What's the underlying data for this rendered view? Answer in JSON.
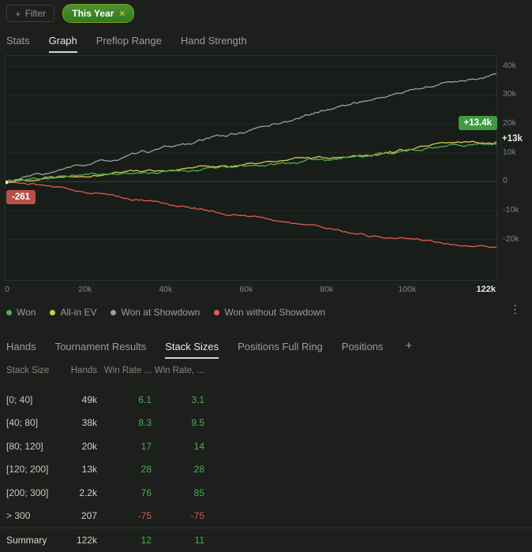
{
  "colors": {
    "page_bg": "#1c1f1c",
    "chart_bg": "#191d19",
    "grid": "#252a25",
    "zero_line": "#3a3f3a",
    "positive": "#4caf50",
    "negative": "#df5550"
  },
  "filter_bar": {
    "add_filter_label": "Filter",
    "add_filter_plus": "+",
    "active_filter_label": "This Year",
    "remove_filter_glyph": "×"
  },
  "top_tabs": [
    {
      "label": "Stats",
      "active": false
    },
    {
      "label": "Graph",
      "active": true
    },
    {
      "label": "Preflop Range",
      "active": false
    },
    {
      "label": "Hand Strength",
      "active": false
    }
  ],
  "chart_data": {
    "type": "line",
    "x_max": 122000,
    "y_domain": [
      -34000,
      43500
    ],
    "x_ticks": [
      {
        "label": "0",
        "value": 0
      },
      {
        "label": "20k",
        "value": 20000
      },
      {
        "label": "40k",
        "value": 40000
      },
      {
        "label": "60k",
        "value": 60000
      },
      {
        "label": "80k",
        "value": 80000
      },
      {
        "label": "100k",
        "value": 100000
      },
      {
        "label": "122k",
        "value": 122000,
        "emph": true
      }
    ],
    "y_ticks": [
      {
        "label": "40k",
        "value": 40000
      },
      {
        "label": "30k",
        "value": 30000
      },
      {
        "label": "20k",
        "value": 20000
      },
      {
        "label": "10k",
        "value": 10000
      },
      {
        "label": "0",
        "value": 0
      },
      {
        "label": "-10k",
        "value": -10000
      },
      {
        "label": "-20k",
        "value": -20000
      }
    ],
    "annotations": {
      "end_badge": "+13.4k",
      "end_axis_label": "+13k",
      "start_badge": "-261"
    },
    "series": [
      {
        "name": "Won",
        "color": "#4caf50",
        "z": 4,
        "noise": 700,
        "seed": 11,
        "points": [
          [
            0,
            -261
          ],
          [
            10000,
            1300
          ],
          [
            20000,
            2400
          ],
          [
            30000,
            2900
          ],
          [
            40000,
            3400
          ],
          [
            50000,
            4300
          ],
          [
            60000,
            5000
          ],
          [
            70000,
            6100
          ],
          [
            80000,
            7600
          ],
          [
            90000,
            9200
          ],
          [
            100000,
            10600
          ],
          [
            110000,
            11600
          ],
          [
            122000,
            13400
          ]
        ]
      },
      {
        "name": "All-in EV",
        "color": "#d5c94f",
        "z": 3,
        "noise": 700,
        "seed": 22,
        "points": [
          [
            0,
            0
          ],
          [
            10000,
            1800
          ],
          [
            20000,
            3300
          ],
          [
            30000,
            4100
          ],
          [
            40000,
            4300
          ],
          [
            50000,
            5100
          ],
          [
            60000,
            5600
          ],
          [
            70000,
            6700
          ],
          [
            80000,
            8100
          ],
          [
            90000,
            9600
          ],
          [
            100000,
            10900
          ],
          [
            110000,
            12100
          ],
          [
            122000,
            13100
          ]
        ]
      },
      {
        "name": "Won at Showdown",
        "color": "#9e9e9e",
        "z": 2,
        "noise": 800,
        "seed": 33,
        "points": [
          [
            0,
            0
          ],
          [
            10000,
            2600
          ],
          [
            20000,
            5200
          ],
          [
            30000,
            8100
          ],
          [
            40000,
            11000
          ],
          [
            50000,
            14200
          ],
          [
            60000,
            17300
          ],
          [
            70000,
            21000
          ],
          [
            80000,
            25000
          ],
          [
            90000,
            28200
          ],
          [
            100000,
            31200
          ],
          [
            110000,
            34200
          ],
          [
            122000,
            37200
          ]
        ]
      },
      {
        "name": "Won without Showdown",
        "color": "#e05b52",
        "z": 1,
        "noise": 600,
        "seed": 44,
        "points": [
          [
            0,
            0
          ],
          [
            10000,
            -1400
          ],
          [
            20000,
            -3400
          ],
          [
            30000,
            -5600
          ],
          [
            40000,
            -7600
          ],
          [
            50000,
            -9800
          ],
          [
            60000,
            -11800
          ],
          [
            70000,
            -14000
          ],
          [
            80000,
            -16300
          ],
          [
            90000,
            -18200
          ],
          [
            100000,
            -19800
          ],
          [
            110000,
            -21200
          ],
          [
            122000,
            -22600
          ]
        ]
      }
    ],
    "legend": [
      {
        "label": "Won",
        "color": "#4caf50"
      },
      {
        "label": "All-in EV",
        "color": "#d5c94f"
      },
      {
        "label": "Won at Showdown",
        "color": "#9e9e9e"
      },
      {
        "label": "Won without Showdown",
        "color": "#e05b52"
      }
    ]
  },
  "chart_menu_glyph": "⋮",
  "bottom_tabs": [
    {
      "label": "Hands",
      "active": false
    },
    {
      "label": "Tournament Results",
      "active": false
    },
    {
      "label": "Stack Sizes",
      "active": true
    },
    {
      "label": "Positions Full Ring",
      "active": false
    },
    {
      "label": "Positions",
      "active": false
    }
  ],
  "add_tab_glyph": "+",
  "table": {
    "headers": [
      "Stack Size",
      "Hands",
      "Win Rate ...",
      "Win Rate, ..."
    ],
    "rows": [
      [
        "[0; 40]",
        "49k",
        "6.1",
        "3.1"
      ],
      [
        "[40; 80]",
        "38k",
        "8.3",
        "9.5"
      ],
      [
        "[80; 120]",
        "20k",
        "17",
        "14"
      ],
      [
        "[120; 200]",
        "13k",
        "28",
        "28"
      ],
      [
        "[200; 300]",
        "2.2k",
        "76",
        "85"
      ],
      [
        "> 300",
        "207",
        "-75",
        "-75"
      ]
    ],
    "summary": [
      "Summary",
      "122k",
      "12",
      "11"
    ]
  }
}
